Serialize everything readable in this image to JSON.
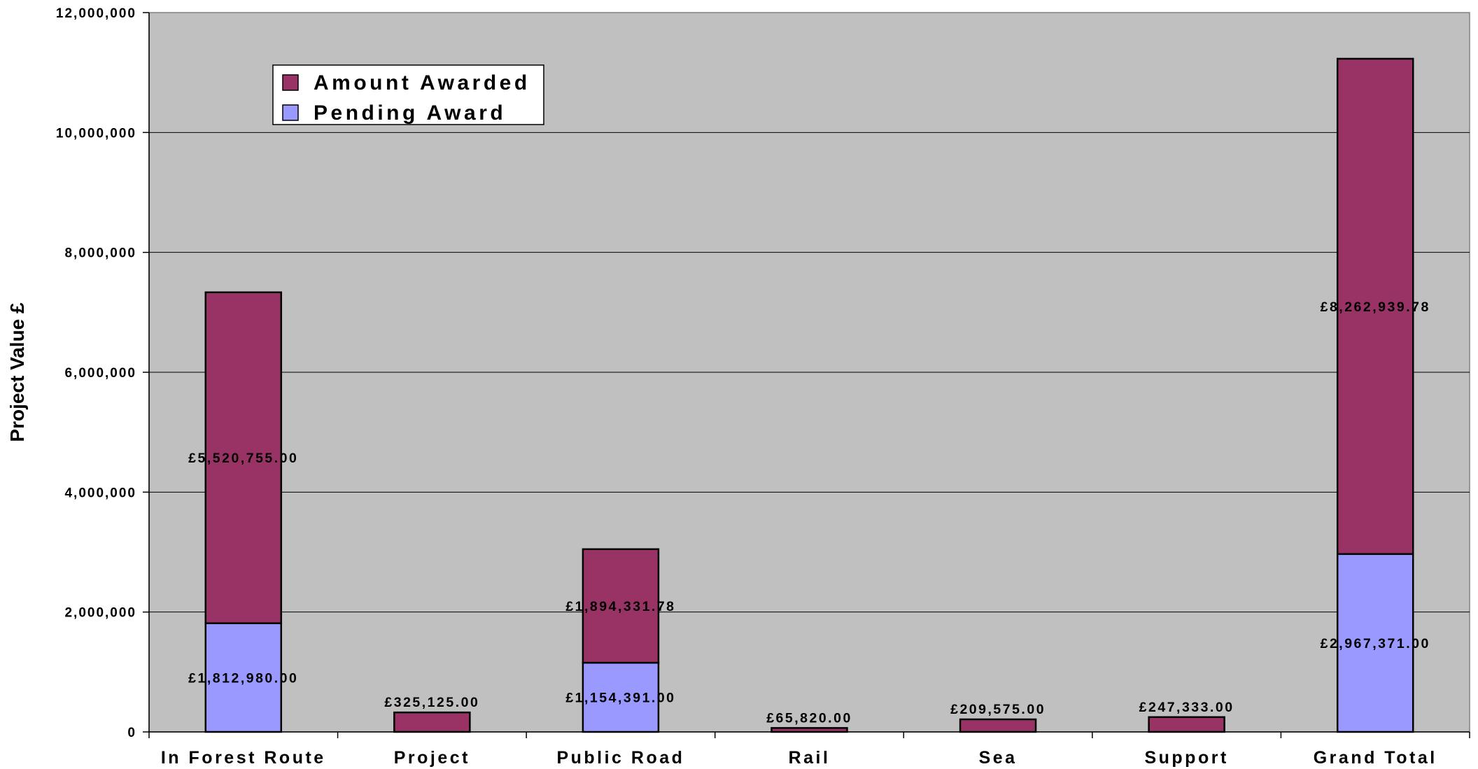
{
  "chart_data": {
    "type": "bar",
    "stacked": true,
    "categories": [
      "In Forest Route",
      "Project",
      "Public Road",
      "Rail",
      "Sea",
      "Support",
      "Grand Total"
    ],
    "series": [
      {
        "name": "Pending Award",
        "color": "#9999FF",
        "values": [
          1812980.0,
          0,
          1154391.0,
          0,
          0,
          0,
          2967371.0
        ],
        "labels": [
          "£1,812,980.00",
          "",
          "£1,154,391.00",
          "",
          "",
          "",
          "£2,967,371.00"
        ]
      },
      {
        "name": "Amount Awarded",
        "color": "#993366",
        "values": [
          5520755.0,
          325125.0,
          1894331.78,
          65820.0,
          209575.0,
          247333.0,
          8262939.78
        ],
        "labels": [
          "£5,520,755.00",
          "£325,125.00",
          "£1,894,331.78",
          "£65,820.00",
          "£209,575.00",
          "£247,333.00",
          "£8,262,939.78"
        ]
      }
    ],
    "legend_order": [
      "Amount Awarded",
      "Pending Award"
    ],
    "legend_position": "top-left",
    "ylabel": "Project Value £",
    "xlabel": "",
    "ylim": [
      0,
      12000000
    ],
    "yticks": [
      0,
      2000000,
      4000000,
      6000000,
      8000000,
      10000000,
      12000000
    ],
    "ytick_labels": [
      "0",
      "2,000,000",
      "4,000,000",
      "6,000,000",
      "8,000,000",
      "10,000,000",
      "12,000,000"
    ],
    "grid": true,
    "plot_background": "#C0C0C0"
  }
}
